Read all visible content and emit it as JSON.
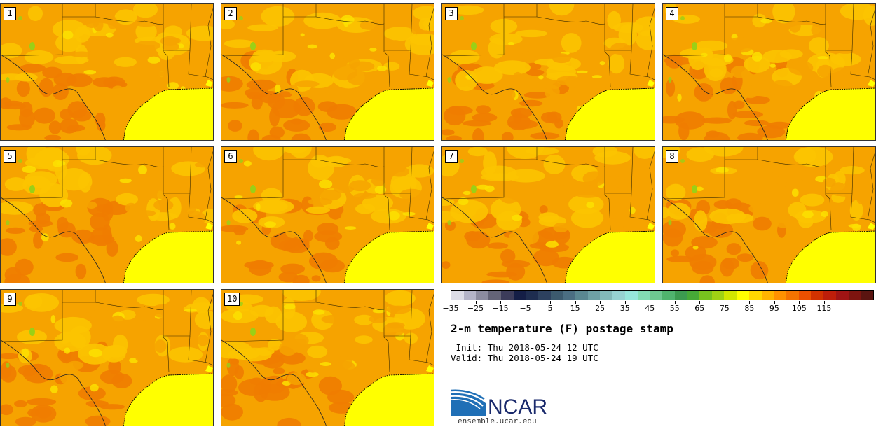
{
  "map": {
    "variable": "2-m temperature (F) postage stamp",
    "panels": [
      {
        "label": "1"
      },
      {
        "label": "2"
      },
      {
        "label": "3"
      },
      {
        "label": "4"
      },
      {
        "label": "5"
      },
      {
        "label": "6"
      },
      {
        "label": "7"
      },
      {
        "label": "8"
      },
      {
        "label": "9"
      },
      {
        "label": "10"
      }
    ],
    "colors": {
      "land_orange": "#f6a300",
      "land_light": "#fcc400",
      "land_dark": "#f07c00",
      "land_yellow": "#fbe000",
      "gulf": "#ffff00",
      "green": "#9ad016",
      "border": "#3a2a00"
    }
  },
  "colorbar": {
    "colors": [
      "#dcdce6",
      "#b4b4c8",
      "#8c8ca0",
      "#646478",
      "#3c3c5a",
      "#141e46",
      "#1e2d50",
      "#2d415f",
      "#3c5a6e",
      "#4b6e82",
      "#5a8791",
      "#6ea0a5",
      "#82b9b9",
      "#96d2d2",
      "#96e6dc",
      "#82dcb4",
      "#6ec891",
      "#50b46e",
      "#3c9b50",
      "#46aa37",
      "#78c31e",
      "#a0d214",
      "#d2e600",
      "#ffff00",
      "#ffd700",
      "#ffb400",
      "#ff9100",
      "#f57300",
      "#eb5000",
      "#d23200",
      "#be1e0a",
      "#a01414",
      "#7d140f",
      "#5a1410"
    ],
    "ticks": [
      "−35",
      "−25",
      "−15",
      "−5",
      "5",
      "15",
      "25",
      "35",
      "45",
      "55",
      "65",
      "75",
      "85",
      "95",
      "105",
      "115"
    ]
  },
  "info": {
    "title": "2-m temperature (F) postage stamp",
    "init": " Init: Thu 2018-05-24 12 UTC",
    "valid": "Valid: Thu 2018-05-24 19 UTC"
  },
  "logo": {
    "text": "NCAR",
    "url": "ensemble.ucar.edu"
  }
}
